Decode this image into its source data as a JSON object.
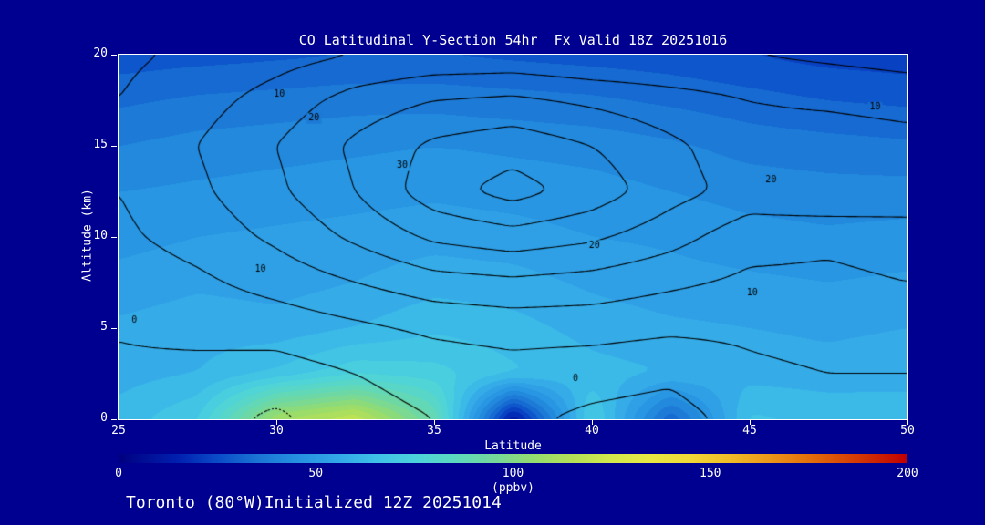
{
  "page": {
    "background": "#000090",
    "text_color": "#ffffff",
    "title": "CO Latitudinal Y-Section 54hr  Fx Valid 18Z 20251016",
    "footer": "Toronto (80°W)Initialized 12Z 20251014"
  },
  "chart_data": {
    "type": "heatmap",
    "subtype": "filled-contour-cross-section",
    "title": "CO Latitudinal Y-Section 54hr  Fx Valid 18Z 20251016",
    "xlabel": "Latitude",
    "ylabel": "Altitude (km)",
    "colorbar_label": "(ppbv)",
    "xlim": [
      25,
      50
    ],
    "ylim": [
      0,
      20
    ],
    "x_ticks": [
      25,
      30,
      35,
      40,
      45,
      50
    ],
    "y_ticks": [
      0,
      5,
      10,
      15,
      20
    ],
    "grid": "off",
    "colorbar": {
      "min": 0,
      "max": 200,
      "ticks": [
        0,
        50,
        100,
        150,
        200
      ],
      "stops": [
        [
          0,
          "#000080"
        ],
        [
          15,
          "#0020b0"
        ],
        [
          25,
          "#0a4cc8"
        ],
        [
          35,
          "#1a74d4"
        ],
        [
          45,
          "#2590e0"
        ],
        [
          55,
          "#32a6e8"
        ],
        [
          65,
          "#3ec0e8"
        ],
        [
          75,
          "#4cd2dc"
        ],
        [
          85,
          "#5cd8c0"
        ],
        [
          95,
          "#74d89c"
        ],
        [
          105,
          "#94dc70"
        ],
        [
          115,
          "#b4e058"
        ],
        [
          125,
          "#d2e84c"
        ],
        [
          135,
          "#e8e844"
        ],
        [
          145,
          "#f0d838"
        ],
        [
          155,
          "#f0bc28"
        ],
        [
          165,
          "#ec9818"
        ],
        [
          175,
          "#e4700c"
        ],
        [
          185,
          "#d84404"
        ],
        [
          200,
          "#c00000"
        ]
      ]
    },
    "fill_field": {
      "units": "ppbv",
      "band_step": 5,
      "lats": [
        25,
        27.5,
        30,
        32.5,
        35,
        37.5,
        40,
        42.5,
        45,
        47.5,
        50
      ],
      "alts": [
        0,
        2.5,
        5,
        7.5,
        10,
        12.5,
        15,
        17.5,
        20
      ],
      "values_by_alt": [
        [
          62,
          70,
          110,
          120,
          90,
          8,
          72,
          30,
          66,
          64,
          63
        ],
        [
          58,
          60,
          66,
          74,
          72,
          66,
          62,
          60,
          58,
          57,
          58
        ],
        [
          56,
          58,
          57,
          60,
          64,
          62,
          58,
          56,
          55,
          54,
          55
        ],
        [
          52,
          54,
          53,
          55,
          58,
          57,
          54,
          52,
          51,
          50,
          51
        ],
        [
          48,
          50,
          51,
          52,
          53,
          52,
          50,
          49,
          47,
          46,
          47
        ],
        [
          45,
          46,
          47,
          48,
          49,
          48,
          47,
          45,
          43,
          42,
          42
        ],
        [
          40,
          42,
          43,
          44,
          45,
          44,
          43,
          41,
          38,
          37,
          36
        ],
        [
          34,
          36,
          37,
          38,
          38,
          37,
          36,
          34,
          32,
          30,
          29
        ],
        [
          27,
          28,
          29,
          30,
          30,
          29,
          28,
          27,
          25,
          23,
          22
        ]
      ]
    },
    "contour_field": {
      "description": "black overlaid contour lines, labeled 0 10 20 30, negative contours dotted",
      "levels": [
        -5,
        0,
        5,
        10,
        15,
        20,
        25,
        30
      ],
      "lats": [
        25,
        27.5,
        30,
        32.5,
        35,
        37.5,
        40,
        42.5,
        45,
        47.5,
        50
      ],
      "alts": [
        0,
        2.5,
        5,
        7.5,
        10,
        12.5,
        15,
        17.5,
        20
      ],
      "values_by_alt": [
        [
          -2,
          -3,
          -6,
          -2,
          0,
          1,
          -1,
          -2,
          2,
          3,
          3
        ],
        [
          -0.5,
          -1,
          -2,
          0,
          2,
          3,
          2,
          1,
          4,
          5,
          5
        ],
        [
          0.2,
          1,
          2,
          4,
          6,
          7,
          7,
          6,
          6,
          7,
          7
        ],
        [
          2,
          4,
          7,
          10,
          13,
          14,
          13,
          11,
          9,
          9,
          10
        ],
        [
          4,
          7,
          11,
          16,
          21,
          23,
          21,
          17,
          12,
          11,
          12
        ],
        [
          5,
          9,
          14,
          20,
          28,
          32,
          28,
          22,
          18,
          20,
          19
        ],
        [
          6,
          10,
          15,
          21,
          26,
          28,
          25,
          21,
          17,
          18,
          17
        ],
        [
          5,
          8,
          12,
          17,
          20,
          21,
          19,
          17,
          15,
          14,
          13
        ],
        [
          4,
          6,
          8,
          10,
          11,
          11,
          10,
          10,
          10,
          9,
          8
        ]
      ]
    },
    "contour_labels": [
      {
        "text": "10",
        "lat": 30.1,
        "alt": 17.8
      },
      {
        "text": "20",
        "lat": 31.2,
        "alt": 16.5
      },
      {
        "text": "30",
        "lat": 34.0,
        "alt": 13.9
      },
      {
        "text": "20",
        "lat": 40.1,
        "alt": 9.5
      },
      {
        "text": "10",
        "lat": 29.5,
        "alt": 8.2
      },
      {
        "text": "0",
        "lat": 25.5,
        "alt": 5.4
      },
      {
        "text": "10",
        "lat": 45.1,
        "alt": 6.9
      },
      {
        "text": "20",
        "lat": 45.7,
        "alt": 13.1
      },
      {
        "text": "10",
        "lat": 49.0,
        "alt": 17.1
      },
      {
        "text": "0",
        "lat": 39.5,
        "alt": 2.2
      }
    ]
  }
}
